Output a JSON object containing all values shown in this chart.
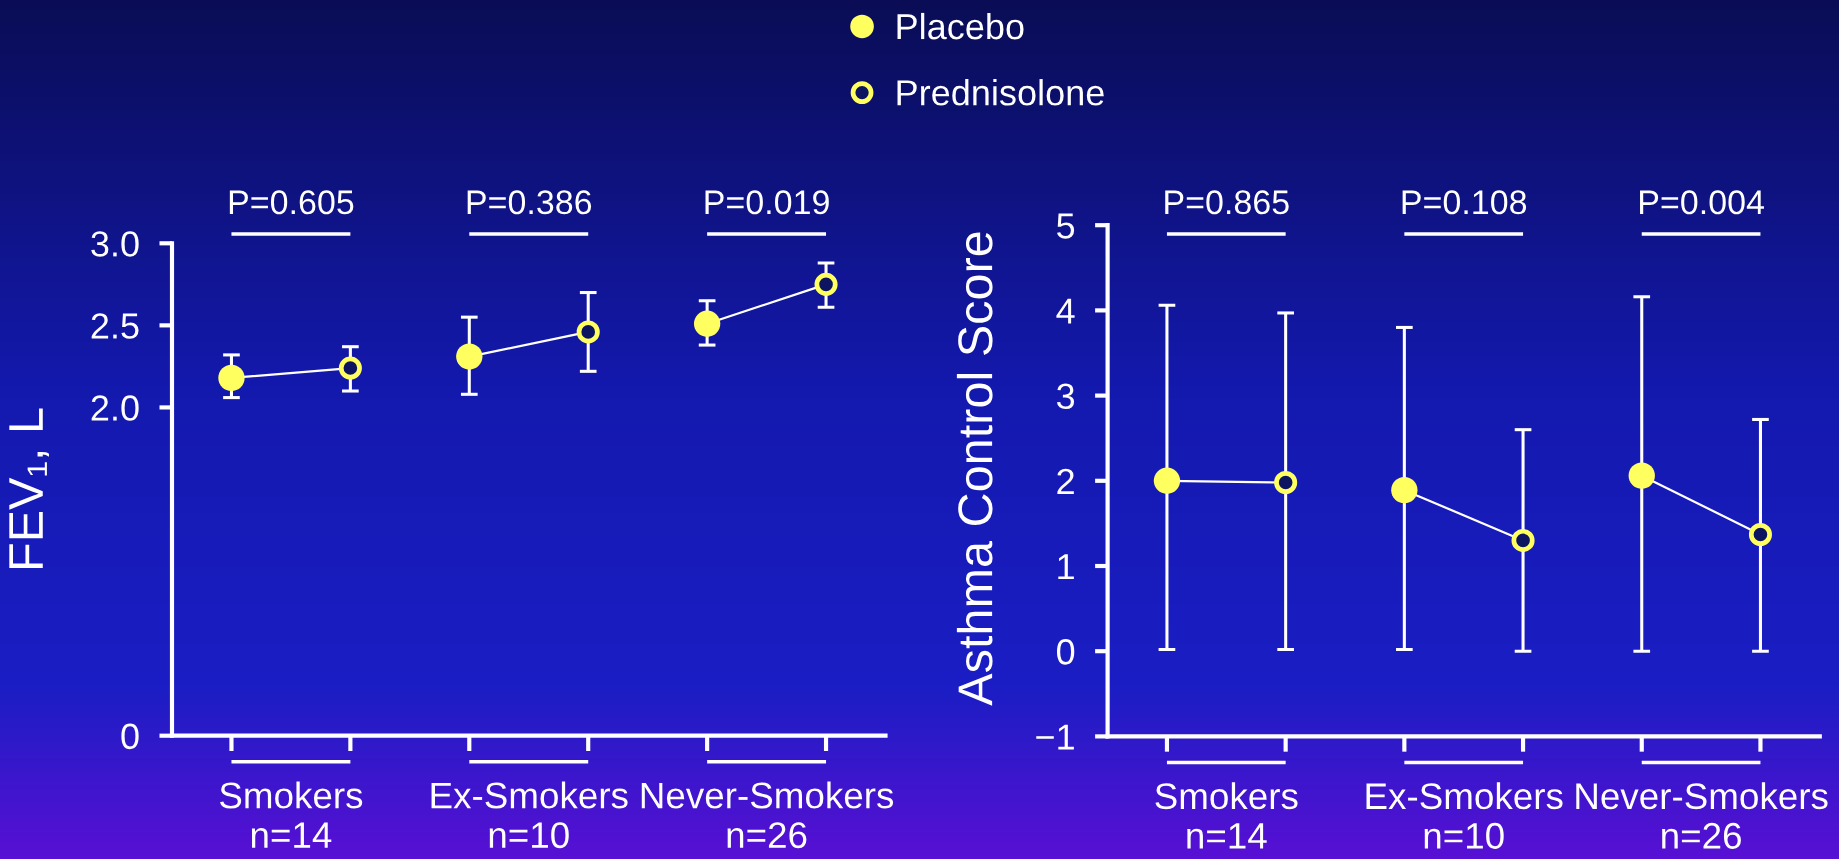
{
  "chart_data": [
    {
      "type": "scatter",
      "ylabel": "FEV₁, L",
      "categories": [
        "Smokers\nn=14",
        "Ex-Smokers\nn=10",
        "Never-Smokers\nn=26"
      ],
      "marker": "circle",
      "legend": "top",
      "ylim": [
        0,
        3.0
      ],
      "yticks": [
        0,
        {
          "value": 2.0,
          "label": "2.0"
        },
        {
          "value": 2.5,
          "label": "2.5"
        },
        {
          "value": 3.0,
          "label": "3.0"
        }
      ],
      "series": [
        {
          "name": "Placebo",
          "color": "#ffff60",
          "values": [
            2.18,
            2.31,
            2.51
          ],
          "errors": [
            [
              2.06,
              2.32
            ],
            [
              2.08,
              2.55
            ],
            [
              2.38,
              2.65
            ]
          ]
        },
        {
          "name": "Prednisolone",
          "color": "#ffff60",
          "values": [
            2.24,
            2.46,
            2.75
          ],
          "errors": [
            [
              2.1,
              2.37
            ],
            [
              2.22,
              2.7
            ],
            [
              2.61,
              2.88
            ]
          ]
        }
      ],
      "annotations": [
        "P=0.605",
        "P=0.386",
        "P=0.019"
      ]
    },
    {
      "type": "scatter",
      "ylabel": "Asthma Control Score",
      "categories": [
        "Smokers\nn=14",
        "Ex-Smokers\nn=10",
        "Never-Smokers\nn=26"
      ],
      "marker": "circle",
      "ylim": [
        -1,
        5
      ],
      "yticks": [
        {
          "value": -1,
          "label": "−1"
        },
        0,
        1,
        2,
        3,
        4,
        5
      ],
      "series": [
        {
          "color": "#ffff60",
          "values": [
            2.0,
            1.89,
            2.06
          ],
          "errors": [
            [
              0.02,
              4.06
            ],
            [
              0.02,
              3.8
            ],
            [
              0.0,
              4.16
            ]
          ]
        },
        {
          "color": "#ffff60",
          "values": [
            1.98,
            1.3,
            1.37
          ],
          "errors": [
            [
              0.02,
              3.97
            ],
            [
              0.0,
              2.6
            ],
            [
              0.0,
              2.72
            ]
          ]
        }
      ],
      "annotations": [
        "P=0.865",
        "P=0.108",
        "P=0.004"
      ]
    }
  ]
}
